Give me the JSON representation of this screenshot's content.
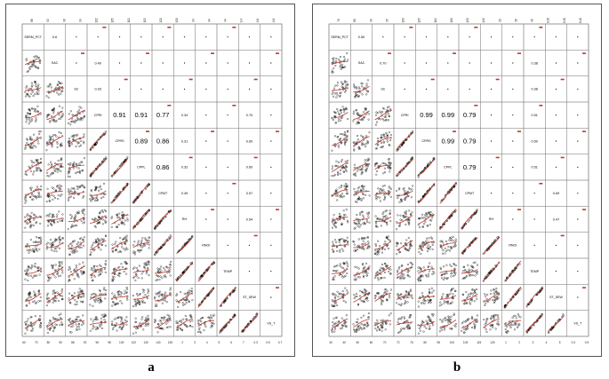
{
  "labels": {
    "a": "a",
    "b": "b"
  },
  "colors": {
    "smoother": "#c0392b",
    "points": "#000000",
    "grid": "#777777"
  },
  "chart_data": [
    {
      "type": "scatter",
      "panel": "a",
      "variables": [
        "SERM_PCT",
        "SAC",
        "SC",
        "CPRI",
        "CPRS",
        "CPPL",
        "CPMT",
        "RH",
        "RNOI",
        "TEMP",
        "ST_SEW",
        "VS_T"
      ],
      "correlations_visible": [
        {
          "row": 3,
          "col": 4,
          "value": "0.91"
        },
        {
          "row": 3,
          "col": 5,
          "value": "0.91"
        },
        {
          "row": 3,
          "col": 6,
          "value": "0.77"
        },
        {
          "row": 4,
          "col": 5,
          "value": "0.89"
        },
        {
          "row": 4,
          "col": 6,
          "value": "0.86"
        },
        {
          "row": 5,
          "col": 6,
          "value": "0.86"
        },
        {
          "row": 3,
          "col": 10,
          "value": "0.70"
        },
        {
          "row": 4,
          "col": 10,
          "value": "0.60"
        },
        {
          "row": 5,
          "col": 10,
          "value": "0.60"
        },
        {
          "row": 6,
          "col": 10,
          "value": "0.57"
        },
        {
          "row": 7,
          "col": 10,
          "value": "0.54"
        },
        {
          "row": 1,
          "col": 3,
          "value": "0.40"
        },
        {
          "row": 2,
          "col": 3,
          "value": "0.33"
        },
        {
          "row": 3,
          "col": 7,
          "value": "0.34"
        },
        {
          "row": 6,
          "col": 7,
          "value": "0.49"
        },
        {
          "row": 4,
          "col": 7,
          "value": "0.31"
        },
        {
          "row": 5,
          "col": 7,
          "value": "0.32"
        },
        {
          "row": 0,
          "col": 1,
          "value": "0.6"
        }
      ],
      "top_ticks": [
        "88",
        "92",
        "96",
        "99",
        "102",
        "105",
        "110",
        "115",
        "120",
        "130",
        "24",
        "34",
        "44",
        "0.4",
        "0.6",
        "0.8"
      ],
      "bottom_ticks": [
        "60",
        "70",
        "80",
        "90",
        "88",
        "92",
        "96",
        "98",
        "100",
        "102",
        "130",
        "140",
        "150",
        "2",
        "3",
        "4",
        "5",
        "6",
        "7",
        "0.3",
        "0.5",
        "0.7"
      ]
    },
    {
      "type": "scatter",
      "panel": "b",
      "variables": [
        "SERM_PCT",
        "SAC",
        "SC",
        "CPRI",
        "CPRS",
        "CPPL",
        "CPMT",
        "RH",
        "RNOI",
        "TEMP",
        "ST_SEW",
        "VS_T"
      ],
      "correlations_visible": [
        {
          "row": 1,
          "col": 2,
          "value": "0.70"
        },
        {
          "row": 3,
          "col": 4,
          "value": "0.99"
        },
        {
          "row": 3,
          "col": 5,
          "value": "0.99"
        },
        {
          "row": 3,
          "col": 6,
          "value": "0.79"
        },
        {
          "row": 4,
          "col": 5,
          "value": "0.99"
        },
        {
          "row": 4,
          "col": 6,
          "value": "0.79"
        },
        {
          "row": 5,
          "col": 6,
          "value": "0.79"
        },
        {
          "row": 6,
          "col": 10,
          "value": "0.69"
        },
        {
          "row": 3,
          "col": 9,
          "value": "0.51"
        },
        {
          "row": 4,
          "col": 9,
          "value": "0.50"
        },
        {
          "row": 5,
          "col": 9,
          "value": "0.51"
        },
        {
          "row": 0,
          "col": 1,
          "value": "0.50"
        },
        {
          "row": 1,
          "col": 9,
          "value": "0.38"
        },
        {
          "row": 2,
          "col": 9,
          "value": "0.38"
        },
        {
          "row": 7,
          "col": 10,
          "value": "0.47"
        }
      ],
      "top_ticks": [
        "70",
        "80",
        "90",
        "95",
        "100",
        "105",
        "110",
        "100",
        "120",
        "140",
        "20",
        "30",
        "40",
        "0.20",
        "0.30",
        "0.40"
      ],
      "bottom_ticks": [
        "30",
        "40",
        "50",
        "60",
        "70",
        "72",
        "76",
        "80",
        "95",
        "100",
        "105",
        "115",
        "125",
        "1",
        "2",
        "3",
        "4",
        "5",
        "0.3",
        "0.5"
      ]
    }
  ]
}
